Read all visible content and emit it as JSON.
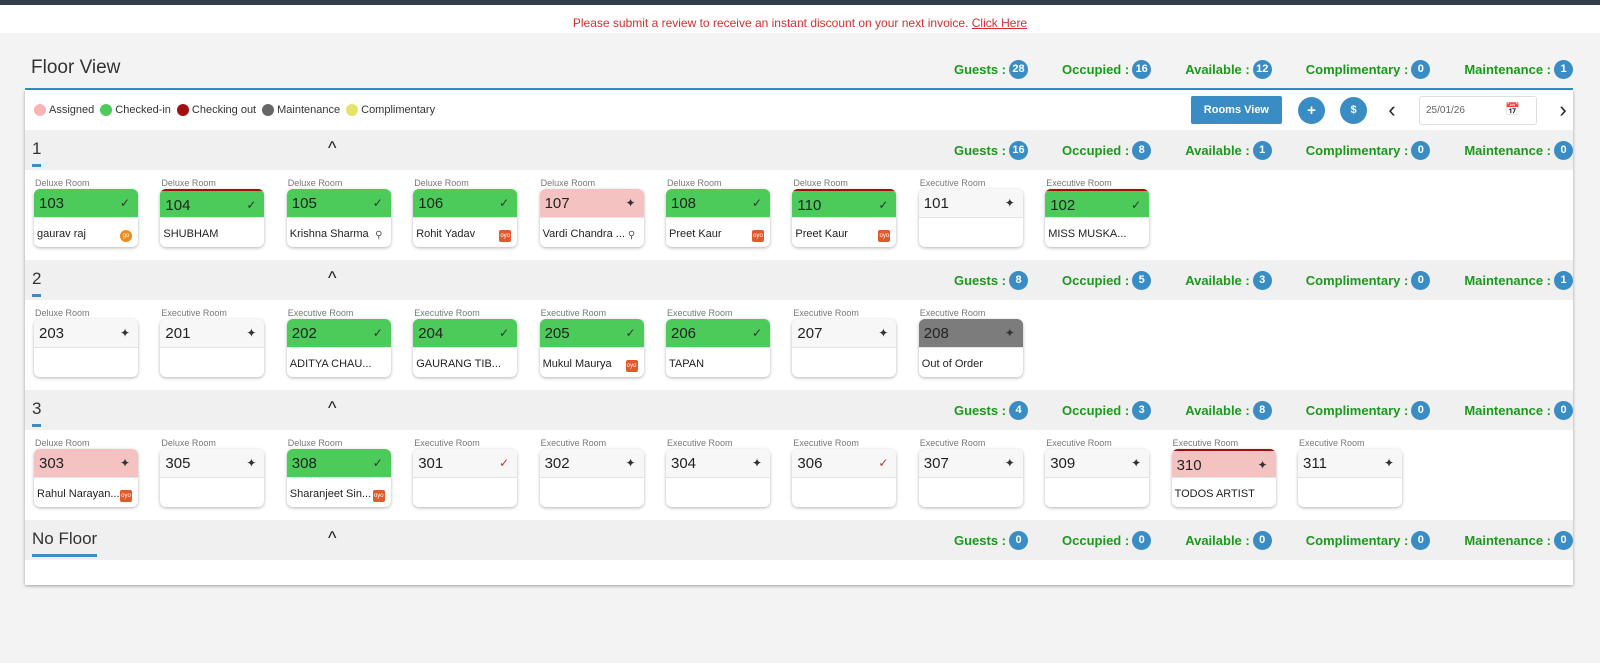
{
  "notice": {
    "text": "Please submit a review to receive an instant discount on your next invoice.",
    "link": "Click Here"
  },
  "title": "Floor View",
  "summary": {
    "guests_label": "Guests :",
    "guests": "28",
    "occupied_label": "Occupied :",
    "occupied": "16",
    "available_label": "Available :",
    "available": "12",
    "complimentary_label": "Complimentary :",
    "complimentary": "0",
    "maintenance_label": "Maintenance :",
    "maintenance": "1"
  },
  "legend": [
    {
      "label": "Assigned",
      "color": "#f5b5b5"
    },
    {
      "label": "Checked-in",
      "color": "#4cca5a"
    },
    {
      "label": "Checking out",
      "color": "#a01010"
    },
    {
      "label": "Maintenance",
      "color": "#666666"
    },
    {
      "label": "Complimentary",
      "color": "#e3e36a"
    }
  ],
  "controls": {
    "rooms_view": "Rooms View",
    "add": "+",
    "dollar": "$",
    "prev": "‹",
    "next": "›",
    "date": "25/01/26"
  },
  "floors": [
    {
      "name": "1",
      "guests": "16",
      "occupied": "8",
      "available": "1",
      "complimentary": "0",
      "maintenance": "0",
      "rooms": [
        {
          "type": "Deluxe Room",
          "no": "103",
          "status": "checkedin",
          "guest": "gaurav raj",
          "src": "round"
        },
        {
          "type": "Deluxe Room",
          "no": "104",
          "status": "checkedin checkout",
          "guest": "SHUBHAM",
          "src": ""
        },
        {
          "type": "Deluxe Room",
          "no": "105",
          "status": "checkedin",
          "guest": "Krishna Sharma",
          "src": "search"
        },
        {
          "type": "Deluxe Room",
          "no": "106",
          "status": "checkedin",
          "guest": "Rohit Yadav",
          "src": "tag"
        },
        {
          "type": "Deluxe Room",
          "no": "107",
          "status": "assigned",
          "guest": "Vardi Chandra ...",
          "src": "search"
        },
        {
          "type": "Deluxe Room",
          "no": "108",
          "status": "checkedin",
          "guest": "Preet Kaur",
          "src": "tag"
        },
        {
          "type": "Deluxe Room",
          "no": "110",
          "status": "checkedin checkout",
          "guest": "Preet Kaur",
          "src": "tag"
        },
        {
          "type": "Executive Room",
          "no": "101",
          "status": "",
          "guest": "",
          "src": ""
        },
        {
          "type": "Executive Room",
          "no": "102",
          "status": "checkedin checkout",
          "guest": "MISS MUSKA...",
          "src": ""
        }
      ]
    },
    {
      "name": "2",
      "guests": "8",
      "occupied": "5",
      "available": "3",
      "complimentary": "0",
      "maintenance": "1",
      "rooms": [
        {
          "type": "Deluxe Room",
          "no": "203",
          "status": "",
          "guest": "",
          "src": ""
        },
        {
          "type": "Executive Room",
          "no": "201",
          "status": "",
          "guest": "",
          "src": ""
        },
        {
          "type": "Executive Room",
          "no": "202",
          "status": "checkedin",
          "guest": "ADITYA CHAU...",
          "src": ""
        },
        {
          "type": "Executive Room",
          "no": "204",
          "status": "checkedin",
          "guest": "GAURANG TIB...",
          "src": ""
        },
        {
          "type": "Executive Room",
          "no": "205",
          "status": "checkedin",
          "guest": "Mukul Maurya",
          "src": "tag"
        },
        {
          "type": "Executive Room",
          "no": "206",
          "status": "checkedin",
          "guest": "TAPAN",
          "src": ""
        },
        {
          "type": "Executive Room",
          "no": "207",
          "status": "",
          "guest": "",
          "src": ""
        },
        {
          "type": "Executive Room",
          "no": "208",
          "status": "maint",
          "guest": "Out of Order",
          "src": ""
        }
      ]
    },
    {
      "name": "3",
      "guests": "4",
      "occupied": "3",
      "available": "8",
      "complimentary": "0",
      "maintenance": "0",
      "rooms": [
        {
          "type": "Deluxe Room",
          "no": "303",
          "status": "assigned",
          "guest": "Rahul Narayan...",
          "src": "tag"
        },
        {
          "type": "Deluxe Room",
          "no": "305",
          "status": "",
          "guest": "",
          "src": ""
        },
        {
          "type": "Deluxe Room",
          "no": "308",
          "status": "checkedin",
          "guest": "Sharanjeet Sin...",
          "src": "tag"
        },
        {
          "type": "Executive Room",
          "no": "301",
          "status": "",
          "guest": "",
          "src": ""
        },
        {
          "type": "Executive Room",
          "no": "302",
          "status": "",
          "guest": "",
          "src": ""
        },
        {
          "type": "Executive Room",
          "no": "304",
          "status": "",
          "guest": "",
          "src": ""
        },
        {
          "type": "Executive Room",
          "no": "306",
          "status": "",
          "guest": "",
          "src": ""
        },
        {
          "type": "Executive Room",
          "no": "307",
          "status": "",
          "guest": "",
          "src": ""
        },
        {
          "type": "Executive Room",
          "no": "309",
          "status": "",
          "guest": "",
          "src": ""
        },
        {
          "type": "Executive Room",
          "no": "310",
          "status": "assigned checkout",
          "guest": "TODOS ARTIST",
          "src": ""
        },
        {
          "type": "Executive Room",
          "no": "311",
          "status": "",
          "guest": "",
          "src": ""
        }
      ]
    },
    {
      "name": "No Floor",
      "guests": "0",
      "occupied": "0",
      "available": "0",
      "complimentary": "0",
      "maintenance": "0",
      "rooms": []
    }
  ],
  "labels": {
    "guests": "Guests :",
    "occupied": "Occupied :",
    "available": "Available :",
    "complimentary": "Complimentary :",
    "maintenance": "Maintenance :"
  },
  "icons": {
    "clean": "broom-icon",
    "dirty": "sparkle-icon"
  }
}
